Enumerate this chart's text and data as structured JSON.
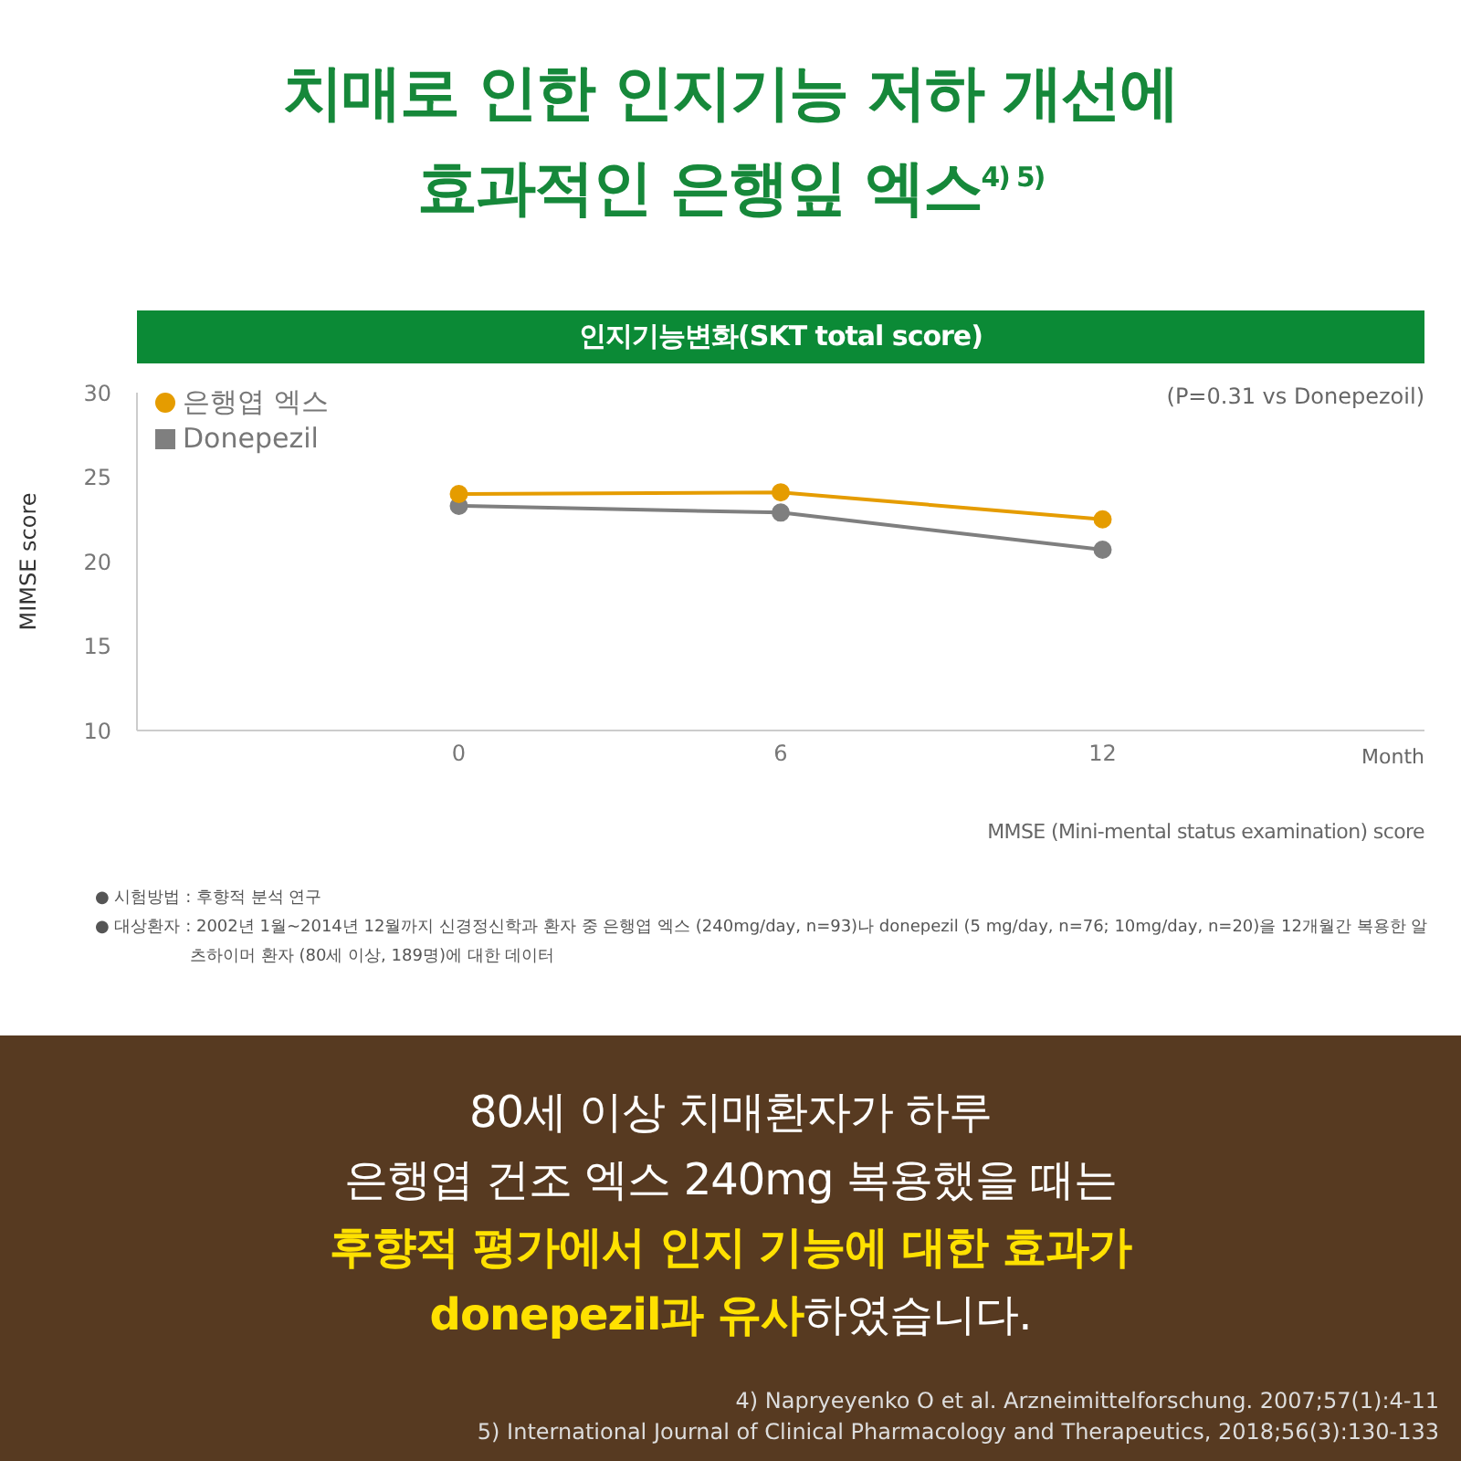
{
  "chart_data": {
    "type": "line",
    "title": "치매로 인한 인지기능 저하 개선에\n효과적인 은행잎 엑스$^{4) 5)}$",
    "subtitle": "인지기능변화(SKT total score)",
    "xlabel": "Month",
    "ylabel": "MIMSE score",
    "x": [
      0,
      6,
      12
    ],
    "xlim": [
      -6,
      18
    ],
    "xticks": [
      0,
      6,
      12
    ],
    "ylim": [
      10,
      30
    ],
    "yticks": [
      10,
      15,
      20,
      25,
      30
    ],
    "grid": false,
    "legend": "top left",
    "marker": "circle",
    "line_style": "solid",
    "series": [
      {
        "name": "은행엽 엑스",
        "color": "#e59c00",
        "values": [
          24.0,
          24.1,
          22.5
        ]
      },
      {
        "name": "Donepezil",
        "color": "#7f7f7f",
        "values": [
          23.3,
          22.9,
          20.7
        ]
      }
    ],
    "annotations": [
      "(P=0.31 vs Donepezoil)",
      "MMSE (Mini-mental status examination) score",
      "● 시험방법 : 후향적 분석 연구",
      "● 대상환자 : 2002년 1월~2014년 12월까지 신경정신학과 환자 중 은행엽 엑스 (240mg/day, n=93)나 donepezil (5 mg/day, n=76;  10mg/day, n=20)을 12개월간 복용한 알츠하이머 환자 (80세 이상, 189명)에 대한 데이터",
      "80세 이상 치매환자가 하루",
      "은행엽 건조 엑스 240mg 복용했을 때는",
      "후향적 평가에서 인지 기능에 대한 효과가",
      "donepezil과 유사",
      "하였습니다.",
      "4) Napryeyenko O et al. Arzneimittelforschung. 2007;57(1):4-11",
      "5) International Journal of Clinical Pharmacology and Therapeutics, 2018;56(3):130-133"
    ]
  }
}
